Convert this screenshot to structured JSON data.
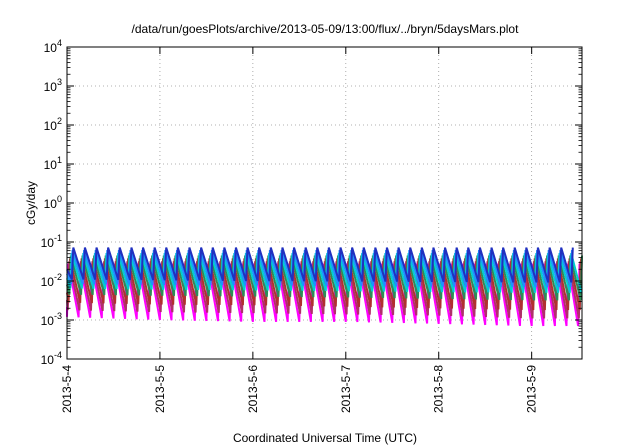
{
  "chart_data": {
    "type": "line",
    "title": "/data/run/goesPlots/archive/2013-05-09/13:00/flux/../bryn/5daysMars.plot",
    "xlabel": "Coordinated Universal Time (UTC)",
    "ylabel": "cGy/day",
    "y_scale": "log",
    "ylim": [
      0.0001,
      10000
    ],
    "xlim": [
      "2013-05-04T00:00",
      "2013-05-09T13:00"
    ],
    "x_tick_labels": [
      "2013-5-4",
      "2013-5-5",
      "2013-5-6",
      "2013-5-7",
      "2013-5-8",
      "2013-5-9"
    ],
    "x_tick_dates": [
      "2013-05-04",
      "2013-05-05",
      "2013-05-06",
      "2013-05-07",
      "2013-05-08",
      "2013-05-09"
    ],
    "y_ticks": [
      {
        "value": 0.0001,
        "base": "10",
        "exp": "-4"
      },
      {
        "value": 0.001,
        "base": "10",
        "exp": "-3"
      },
      {
        "value": 0.01,
        "base": "10",
        "exp": "-2"
      },
      {
        "value": 0.1,
        "base": "10",
        "exp": "-1"
      },
      {
        "value": 1,
        "base": "10",
        "exp": "0"
      },
      {
        "value": 10,
        "base": "10",
        "exp": "1"
      },
      {
        "value": 100,
        "base": "10",
        "exp": "2"
      },
      {
        "value": 1000,
        "base": "10",
        "exp": "3"
      },
      {
        "value": 10000,
        "base": "10",
        "exp": "4"
      }
    ],
    "grid": true,
    "grid_style": "dotted",
    "legend": "none",
    "pattern": "sawtooth",
    "series": [
      {
        "color": "#ff00ff",
        "peaks": [
          0.028,
          0.028,
          0.028,
          0.028,
          0.028,
          0.028
        ],
        "troughs": [
          0.0012,
          0.001,
          0.0009,
          0.0009,
          0.0008,
          0.0007
        ]
      },
      {
        "color": "#b0306a",
        "peaks": [
          0.032,
          0.032,
          0.032,
          0.032,
          0.032,
          0.032
        ],
        "troughs": [
          0.0018,
          0.0016,
          0.0015,
          0.0014,
          0.0013,
          0.0011
        ]
      },
      {
        "color": "#b03030",
        "peaks": [
          0.038,
          0.038,
          0.038,
          0.038,
          0.038,
          0.038
        ],
        "troughs": [
          0.0028,
          0.0025,
          0.0024,
          0.0022,
          0.002,
          0.0018
        ]
      },
      {
        "color": "#2e8b57",
        "peaks": [
          0.045,
          0.045,
          0.045,
          0.045,
          0.045,
          0.045
        ],
        "troughs": [
          0.0045,
          0.0042,
          0.004,
          0.0038,
          0.0035,
          0.0032
        ]
      },
      {
        "color": "#00ced1",
        "peaks": [
          0.052,
          0.052,
          0.052,
          0.052,
          0.052,
          0.052
        ],
        "troughs": [
          0.0065,
          0.006,
          0.0058,
          0.0055,
          0.0052,
          0.005
        ]
      },
      {
        "color": "#1e90ff",
        "peaks": [
          0.062,
          0.062,
          0.062,
          0.062,
          0.062,
          0.062
        ],
        "troughs": [
          0.0085,
          0.008,
          0.0078,
          0.0075,
          0.0072,
          0.007
        ]
      },
      {
        "color": "#2030c0",
        "peaks": [
          0.072,
          0.072,
          0.072,
          0.072,
          0.072,
          0.072
        ],
        "troughs": [
          0.011,
          0.0105,
          0.01,
          0.0098,
          0.0095,
          0.0092
        ]
      }
    ]
  }
}
